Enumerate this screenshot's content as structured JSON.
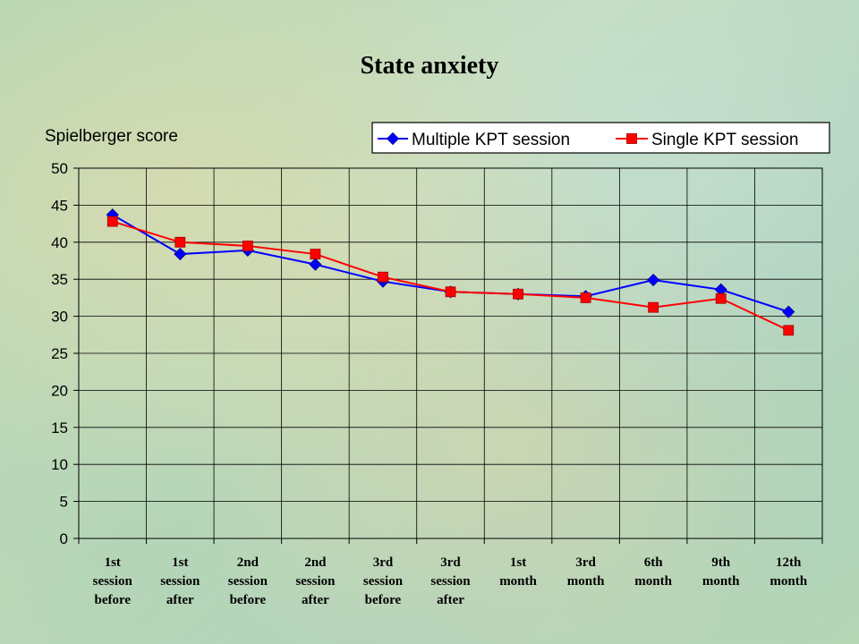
{
  "chart_data": {
    "type": "line",
    "title": "State anxiety",
    "xlabel": "",
    "ylabel": "Spielberger score",
    "ylim": [
      0,
      50
    ],
    "yticks": [
      0,
      5,
      10,
      15,
      20,
      25,
      30,
      35,
      40,
      45,
      50
    ],
    "grid": true,
    "legend_position": "top-right",
    "categories": [
      [
        "1st",
        "session",
        "before"
      ],
      [
        "1st",
        "session",
        "after"
      ],
      [
        "2nd",
        "session",
        "before"
      ],
      [
        "2nd",
        "session",
        "after"
      ],
      [
        "3rd",
        "session",
        "before"
      ],
      [
        "3rd",
        "session",
        "after"
      ],
      [
        "1st",
        "month"
      ],
      [
        "3rd",
        "month"
      ],
      [
        "6th",
        "month"
      ],
      [
        "9th",
        "month"
      ],
      [
        "12th",
        "month"
      ]
    ],
    "series": [
      {
        "name": "Multiple KPT session",
        "color": "#0000ff",
        "marker": "diamond",
        "values": [
          43.7,
          38.4,
          38.9,
          37.0,
          34.7,
          33.3,
          33.0,
          32.7,
          34.9,
          33.6,
          30.6
        ]
      },
      {
        "name": "Single KPT session",
        "color": "#ff0000",
        "marker": "square",
        "values": [
          42.8,
          40.0,
          39.5,
          38.4,
          35.3,
          33.3,
          33.0,
          32.5,
          31.2,
          32.4,
          28.1
        ]
      }
    ]
  }
}
